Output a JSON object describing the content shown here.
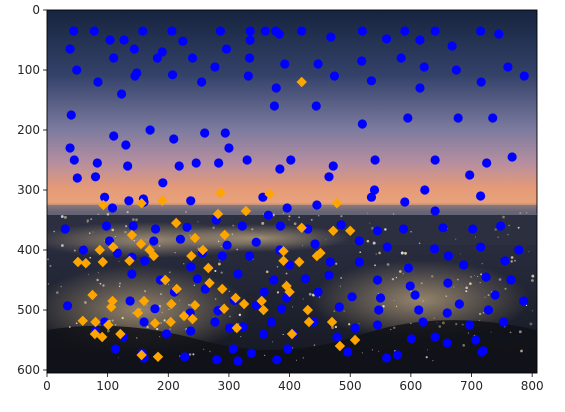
{
  "chart_data": {
    "type": "scatter",
    "title": "",
    "xlabel": "",
    "ylabel": "",
    "xlim": [
      0,
      808
    ],
    "ylim": [
      605,
      0
    ],
    "x_ticks": [
      0,
      100,
      200,
      300,
      400,
      500,
      600,
      700,
      800
    ],
    "y_ticks": [
      0,
      100,
      200,
      300,
      400,
      500,
      600
    ],
    "background": "night city skyline photograph at dusk (image shown with imshow)",
    "colors": {
      "blue": "#0000ff",
      "orange": "#ffa500",
      "sky_top": "#1b2a4e",
      "sky_mid": "#b08aa3",
      "horizon": "#e8946a",
      "city": "#1a1d2a"
    },
    "series": [
      {
        "name": "blue",
        "color": "#0000ff",
        "points": [
          [
            44,
            35
          ],
          [
            78,
            35
          ],
          [
            158,
            35
          ],
          [
            206,
            35
          ],
          [
            286,
            35
          ],
          [
            335,
            35
          ],
          [
            360,
            35
          ],
          [
            377,
            35
          ],
          [
            420,
            35
          ],
          [
            520,
            35
          ],
          [
            590,
            35
          ],
          [
            640,
            35
          ],
          [
            715,
            35
          ],
          [
            38,
            65
          ],
          [
            104,
            50
          ],
          [
            127,
            50
          ],
          [
            144,
            65
          ],
          [
            190,
            70
          ],
          [
            224,
            52
          ],
          [
            296,
            65
          ],
          [
            335,
            50
          ],
          [
            383,
            40
          ],
          [
            468,
            45
          ],
          [
            560,
            48
          ],
          [
            615,
            50
          ],
          [
            668,
            60
          ],
          [
            745,
            40
          ],
          [
            49,
            100
          ],
          [
            110,
            80
          ],
          [
            148,
            105
          ],
          [
            182,
            80
          ],
          [
            240,
            80
          ],
          [
            277,
            95
          ],
          [
            334,
            80
          ],
          [
            392,
            90
          ],
          [
            447,
            90
          ],
          [
            519,
            85
          ],
          [
            584,
            80
          ],
          [
            622,
            95
          ],
          [
            675,
            100
          ],
          [
            760,
            95
          ],
          [
            40,
            175
          ],
          [
            84,
            120
          ],
          [
            123,
            140
          ],
          [
            145,
            110
          ],
          [
            207,
            108
          ],
          [
            255,
            120
          ],
          [
            332,
            110
          ],
          [
            378,
            130
          ],
          [
            474,
            110
          ],
          [
            535,
            118
          ],
          [
            615,
            130
          ],
          [
            716,
            120
          ],
          [
            787,
            110
          ],
          [
            38,
            230
          ],
          [
            110,
            210
          ],
          [
            130,
            225
          ],
          [
            170,
            200
          ],
          [
            209,
            215
          ],
          [
            260,
            205
          ],
          [
            294,
            205
          ],
          [
            375,
            160
          ],
          [
            444,
            160
          ],
          [
            520,
            190
          ],
          [
            595,
            180
          ],
          [
            678,
            180
          ],
          [
            735,
            180
          ],
          [
            45,
            250
          ],
          [
            83,
            255
          ],
          [
            133,
            260
          ],
          [
            191,
            288
          ],
          [
            246,
            255
          ],
          [
            300,
            230
          ],
          [
            330,
            250
          ],
          [
            402,
            250
          ],
          [
            472,
            260
          ],
          [
            541,
            250
          ],
          [
            640,
            250
          ],
          [
            725,
            255
          ],
          [
            50,
            280
          ],
          [
            80,
            278
          ],
          [
            135,
            318
          ],
          [
            159,
            315
          ],
          [
            218,
            260
          ],
          [
            283,
            255
          ],
          [
            384,
            265
          ],
          [
            465,
            278
          ],
          [
            540,
            300
          ],
          [
            623,
            300
          ],
          [
            697,
            275
          ],
          [
            767,
            245
          ],
          [
            95,
            312
          ],
          [
            108,
            330
          ],
          [
            160,
            320
          ],
          [
            237,
            318
          ],
          [
            356,
            312
          ],
          [
            365,
            342
          ],
          [
            396,
            330
          ],
          [
            445,
            325
          ],
          [
            535,
            312
          ],
          [
            590,
            320
          ],
          [
            640,
            335
          ],
          [
            715,
            310
          ],
          [
            30,
            365
          ],
          [
            98,
            360
          ],
          [
            142,
            360
          ],
          [
            179,
            365
          ],
          [
            231,
            362
          ],
          [
            279,
            350
          ],
          [
            322,
            360
          ],
          [
            385,
            360
          ],
          [
            430,
            365
          ],
          [
            485,
            358
          ],
          [
            545,
            368
          ],
          [
            588,
            365
          ],
          [
            653,
            363
          ],
          [
            702,
            365
          ],
          [
            748,
            360
          ],
          [
            103,
            385
          ],
          [
            116,
            405
          ],
          [
            176,
            385
          ],
          [
            220,
            382
          ],
          [
            256,
            405
          ],
          [
            297,
            392
          ],
          [
            345,
            387
          ],
          [
            384,
            400
          ],
          [
            442,
            390
          ],
          [
            515,
            385
          ],
          [
            561,
            395
          ],
          [
            639,
            398
          ],
          [
            715,
            395
          ],
          [
            778,
            400
          ],
          [
            60,
            400
          ],
          [
            140,
            412
          ],
          [
            161,
            418
          ],
          [
            237,
            428
          ],
          [
            289,
            410
          ],
          [
            334,
            410
          ],
          [
            400,
            425
          ],
          [
            467,
            420
          ],
          [
            515,
            420
          ],
          [
            596,
            430
          ],
          [
            662,
            410
          ],
          [
            687,
            425
          ],
          [
            755,
            418
          ],
          [
            140,
            440
          ],
          [
            187,
            450
          ],
          [
            248,
            448
          ],
          [
            315,
            440
          ],
          [
            374,
            450
          ],
          [
            426,
            448
          ],
          [
            465,
            442
          ],
          [
            545,
            450
          ],
          [
            599,
            460
          ],
          [
            661,
            455
          ],
          [
            724,
            445
          ],
          [
            765,
            450
          ],
          [
            210,
            470
          ],
          [
            261,
            465
          ],
          [
            309,
            484
          ],
          [
            358,
            470
          ],
          [
            395,
            480
          ],
          [
            447,
            470
          ],
          [
            503,
            478
          ],
          [
            550,
            480
          ],
          [
            607,
            475
          ],
          [
            680,
            490
          ],
          [
            739,
            475
          ],
          [
            786,
            485
          ],
          [
            34,
            493
          ],
          [
            137,
            485
          ],
          [
            178,
            498
          ],
          [
            236,
            505
          ],
          [
            282,
            501
          ],
          [
            345,
            492
          ],
          [
            387,
            498
          ],
          [
            482,
            495
          ],
          [
            547,
            500
          ],
          [
            613,
            500
          ],
          [
            660,
            505
          ],
          [
            728,
            500
          ],
          [
            95,
            520
          ],
          [
            160,
            520
          ],
          [
            277,
            520
          ],
          [
            323,
            528
          ],
          [
            370,
            520
          ],
          [
            440,
            520
          ],
          [
            508,
            530
          ],
          [
            545,
            525
          ],
          [
            620,
            520
          ],
          [
            697,
            525
          ],
          [
            753,
            520
          ],
          [
            80,
            535
          ],
          [
            126,
            545
          ],
          [
            197,
            540
          ],
          [
            237,
            535
          ],
          [
            301,
            530
          ],
          [
            357,
            540
          ],
          [
            406,
            540
          ],
          [
            478,
            545
          ],
          [
            601,
            548
          ],
          [
            640,
            545
          ],
          [
            707,
            550
          ],
          [
            113,
            565
          ],
          [
            157,
            572
          ],
          [
            227,
            578
          ],
          [
            307,
            565
          ],
          [
            337,
            572
          ],
          [
            397,
            565
          ],
          [
            496,
            570
          ],
          [
            578,
            575
          ],
          [
            660,
            555
          ],
          [
            719,
            568
          ],
          [
            160,
            580
          ],
          [
            280,
            583
          ],
          [
            315,
            585
          ],
          [
            379,
            583
          ],
          [
            560,
            580
          ],
          [
            717,
            570
          ]
        ]
      },
      {
        "name": "orange",
        "color": "#ffa500",
        "points": [
          [
            420,
            120
          ],
          [
            286,
            305
          ],
          [
            367,
            307
          ],
          [
            93,
            325
          ],
          [
            156,
            322
          ],
          [
            190,
            318
          ],
          [
            282,
            340
          ],
          [
            328,
            335
          ],
          [
            478,
            322
          ],
          [
            213,
            355
          ],
          [
            140,
            375
          ],
          [
            155,
            390
          ],
          [
            109,
            395
          ],
          [
            244,
            380
          ],
          [
            293,
            375
          ],
          [
            420,
            363
          ],
          [
            472,
            368
          ],
          [
            500,
            368
          ],
          [
            51,
            420
          ],
          [
            64,
            422
          ],
          [
            87,
            400
          ],
          [
            92,
            420
          ],
          [
            136,
            418
          ],
          [
            176,
            410
          ],
          [
            169,
            400
          ],
          [
            257,
            400
          ],
          [
            238,
            410
          ],
          [
            266,
            430
          ],
          [
            390,
            402
          ],
          [
            390,
            418
          ],
          [
            416,
            420
          ],
          [
            445,
            410
          ],
          [
            451,
            405
          ],
          [
            195,
            450
          ],
          [
            214,
            465
          ],
          [
            268,
            455
          ],
          [
            289,
            465
          ],
          [
            311,
            480
          ],
          [
            325,
            490
          ],
          [
            354,
            485
          ],
          [
            395,
            460
          ],
          [
            400,
            470
          ],
          [
            75,
            475
          ],
          [
            108,
            485
          ],
          [
            106,
            495
          ],
          [
            160,
            485
          ],
          [
            205,
            490
          ],
          [
            244,
            492
          ],
          [
            292,
            498
          ],
          [
            357,
            500
          ],
          [
            430,
            500
          ],
          [
            59,
            518
          ],
          [
            80,
            520
          ],
          [
            101,
            525
          ],
          [
            150,
            505
          ],
          [
            178,
            522
          ],
          [
            204,
            520
          ],
          [
            226,
            510
          ],
          [
            313,
            530
          ],
          [
            432,
            520
          ],
          [
            470,
            520
          ],
          [
            79,
            540
          ],
          [
            91,
            545
          ],
          [
            121,
            540
          ],
          [
            240,
            515
          ],
          [
            404,
            540
          ],
          [
            508,
            550
          ],
          [
            156,
            575
          ],
          [
            183,
            578
          ],
          [
            483,
            560
          ]
        ]
      }
    ]
  }
}
